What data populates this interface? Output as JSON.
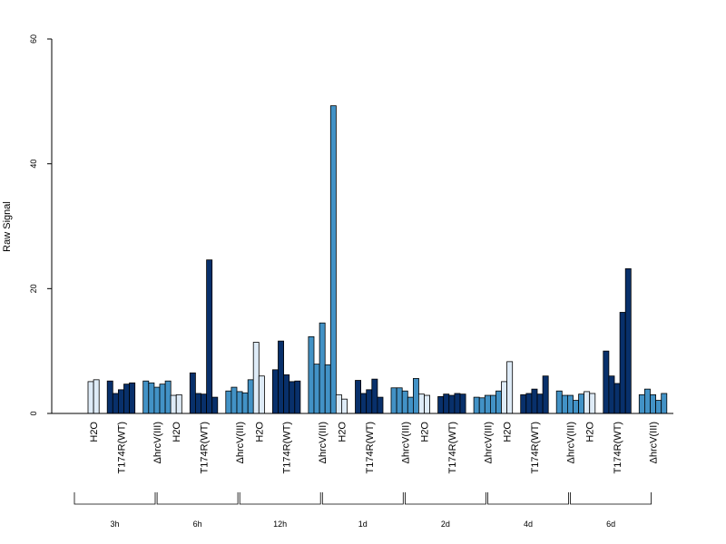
{
  "chart_data": {
    "type": "bar",
    "title": "",
    "xlabel": "",
    "ylabel": "Raw Signal",
    "ylim": [
      0,
      60
    ],
    "yticks": [
      0,
      20,
      40,
      60
    ],
    "grid": false,
    "colors": {
      "H2O": "#deebf7",
      "T174R(WT)": "#08306b",
      "ΔhrcV(III)": "#4292c6"
    },
    "groups": [
      {
        "label": "3h",
        "treatments": [
          {
            "name": "H2O",
            "values": [
              5.1,
              5.4
            ]
          },
          {
            "name": "T174R(WT)",
            "values": [
              5.2,
              3.2,
              3.8,
              4.7,
              4.9
            ]
          },
          {
            "name": "ΔhrcV(III)",
            "values": [
              5.2,
              4.9,
              4.2,
              4.7,
              5.2
            ]
          }
        ]
      },
      {
        "label": "6h",
        "treatments": [
          {
            "name": "H2O",
            "values": [
              2.9,
              3.0
            ]
          },
          {
            "name": "T174R(WT)",
            "values": [
              6.5,
              3.2,
              3.1,
              24.6,
              2.6
            ]
          },
          {
            "name": "ΔhrcV(III)",
            "values": [
              3.6,
              4.2,
              3.5,
              3.3,
              5.4
            ]
          }
        ]
      },
      {
        "label": "12h",
        "treatments": [
          {
            "name": "H2O",
            "values": [
              11.4,
              6.0
            ]
          },
          {
            "name": "T174R(WT)",
            "values": [
              7.0,
              11.6,
              6.2,
              5.1,
              5.2
            ]
          },
          {
            "name": "ΔhrcV(III)",
            "values": [
              12.3,
              7.9,
              14.5,
              7.8,
              49.3
            ]
          }
        ]
      },
      {
        "label": "1d",
        "treatments": [
          {
            "name": "H2O",
            "values": [
              3.0,
              2.3
            ]
          },
          {
            "name": "T174R(WT)",
            "values": [
              5.3,
              3.2,
              3.8,
              5.5,
              2.6
            ]
          },
          {
            "name": "ΔhrcV(III)",
            "values": [
              4.1,
              4.1,
              3.6,
              2.6,
              5.6
            ]
          }
        ]
      },
      {
        "label": "2d",
        "treatments": [
          {
            "name": "H2O",
            "values": [
              3.1,
              2.9
            ]
          },
          {
            "name": "T174R(WT)",
            "values": [
              2.7,
              3.1,
              2.9,
              3.2,
              3.1
            ]
          },
          {
            "name": "ΔhrcV(III)",
            "values": [
              2.6,
              2.5,
              2.9,
              2.9,
              3.6
            ]
          }
        ]
      },
      {
        "label": "4d",
        "treatments": [
          {
            "name": "H2O",
            "values": [
              5.1,
              8.3
            ]
          },
          {
            "name": "T174R(WT)",
            "values": [
              3.0,
              3.2,
              3.9,
              3.1,
              6.0
            ]
          },
          {
            "name": "ΔhrcV(III)",
            "values": [
              3.6,
              2.9,
              2.9,
              2.1,
              3.1
            ]
          }
        ]
      },
      {
        "label": "6d",
        "treatments": [
          {
            "name": "H2O",
            "values": [
              3.5,
              3.2
            ]
          },
          {
            "name": "T174R(WT)",
            "values": [
              10.0,
              6.0,
              4.8,
              16.2,
              23.2
            ]
          },
          {
            "name": "ΔhrcV(III)",
            "values": [
              3.0,
              3.9,
              3.0,
              2.1,
              3.2
            ]
          }
        ]
      }
    ]
  }
}
